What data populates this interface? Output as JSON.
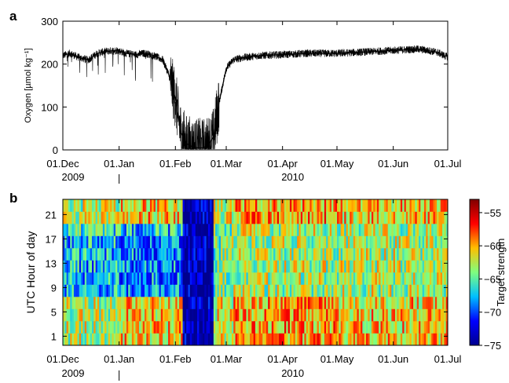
{
  "chart_data": [
    {
      "type": "line",
      "panel_label": "a",
      "ylabel": "Oxygen [µmol kg⁻¹]",
      "ylim": [
        0,
        300
      ],
      "yticks": [
        0,
        100,
        200,
        300
      ],
      "x_tick_labels": [
        "01.Dec",
        "01.Jan",
        "01.Feb",
        "01.Mar",
        "01.Apr",
        "01.May",
        "01.Jun",
        "01.Jul"
      ],
      "x_year_labels": [
        {
          "label": "2009",
          "under": "01.Dec"
        },
        {
          "label": "2010",
          "under": "01.Apr"
        }
      ],
      "xlim": [
        "2009-12-01",
        "2010-07-01"
      ],
      "series": [
        {
          "x": [
            "2009-12-01",
            "2009-12-05",
            "2009-12-10",
            "2009-12-15",
            "2009-12-20",
            "2009-12-25",
            "2009-12-31",
            "2010-01-05",
            "2010-01-10",
            "2010-01-15",
            "2010-01-20",
            "2010-01-25",
            "2010-01-28",
            "2010-02-01",
            "2010-02-04",
            "2010-02-07",
            "2010-02-10",
            "2010-02-13",
            "2010-02-16",
            "2010-02-19",
            "2010-02-22",
            "2010-02-25",
            "2010-03-01",
            "2010-03-05",
            "2010-03-10",
            "2010-03-20",
            "2010-04-01",
            "2010-04-15",
            "2010-05-01",
            "2010-05-15",
            "2010-06-01",
            "2010-06-15",
            "2010-06-25",
            "2010-06-30"
          ],
          "y": [
            220,
            225,
            215,
            210,
            225,
            230,
            232,
            225,
            222,
            225,
            220,
            210,
            180,
            120,
            40,
            15,
            8,
            5,
            5,
            10,
            30,
            110,
            190,
            210,
            215,
            220,
            222,
            225,
            225,
            228,
            232,
            235,
            228,
            218
          ]
        }
      ]
    },
    {
      "type": "heatmap",
      "panel_label": "b",
      "ylabel": "UTC Hour of day",
      "yticks": [
        1,
        5,
        9,
        13,
        17,
        21
      ],
      "ylim": [
        0,
        24
      ],
      "x_tick_labels": [
        "01.Dec",
        "01.Jan",
        "01.Feb",
        "01.Mar",
        "01.Apr",
        "01.May",
        "01.Jun",
        "01.Jul"
      ],
      "x_year_labels": [
        {
          "label": "2009",
          "under": "01.Dec"
        },
        {
          "label": "2010",
          "under": "01.Apr"
        }
      ],
      "xlim": [
        "2009-12-01",
        "2010-07-01"
      ],
      "colorbar": {
        "label": "Target strength",
        "min": -75,
        "max": -53,
        "ticks": [
          -55,
          -60,
          -65,
          -70,
          -75
        ]
      },
      "periods": [
        {
          "from": "2009-12-01",
          "to": "2010-01-01",
          "night": -63,
          "day": -66
        },
        {
          "from": "2010-01-01",
          "to": "2010-02-05",
          "night": -61,
          "day": -67
        },
        {
          "from": "2010-02-05",
          "to": "2010-02-22",
          "night": -74,
          "day": -74
        },
        {
          "from": "2010-02-22",
          "to": "2010-03-05",
          "night": -62,
          "day": -64
        },
        {
          "from": "2010-03-05",
          "to": "2010-05-01",
          "night": -60,
          "day": -63
        },
        {
          "from": "2010-05-01",
          "to": "2010-07-01",
          "night": -61,
          "day": -63
        }
      ],
      "colors": [
        "#00008f",
        "#0000ff",
        "#00bfff",
        "#7fff7f",
        "#ffbf00",
        "#ff0000",
        "#800000"
      ]
    }
  ]
}
